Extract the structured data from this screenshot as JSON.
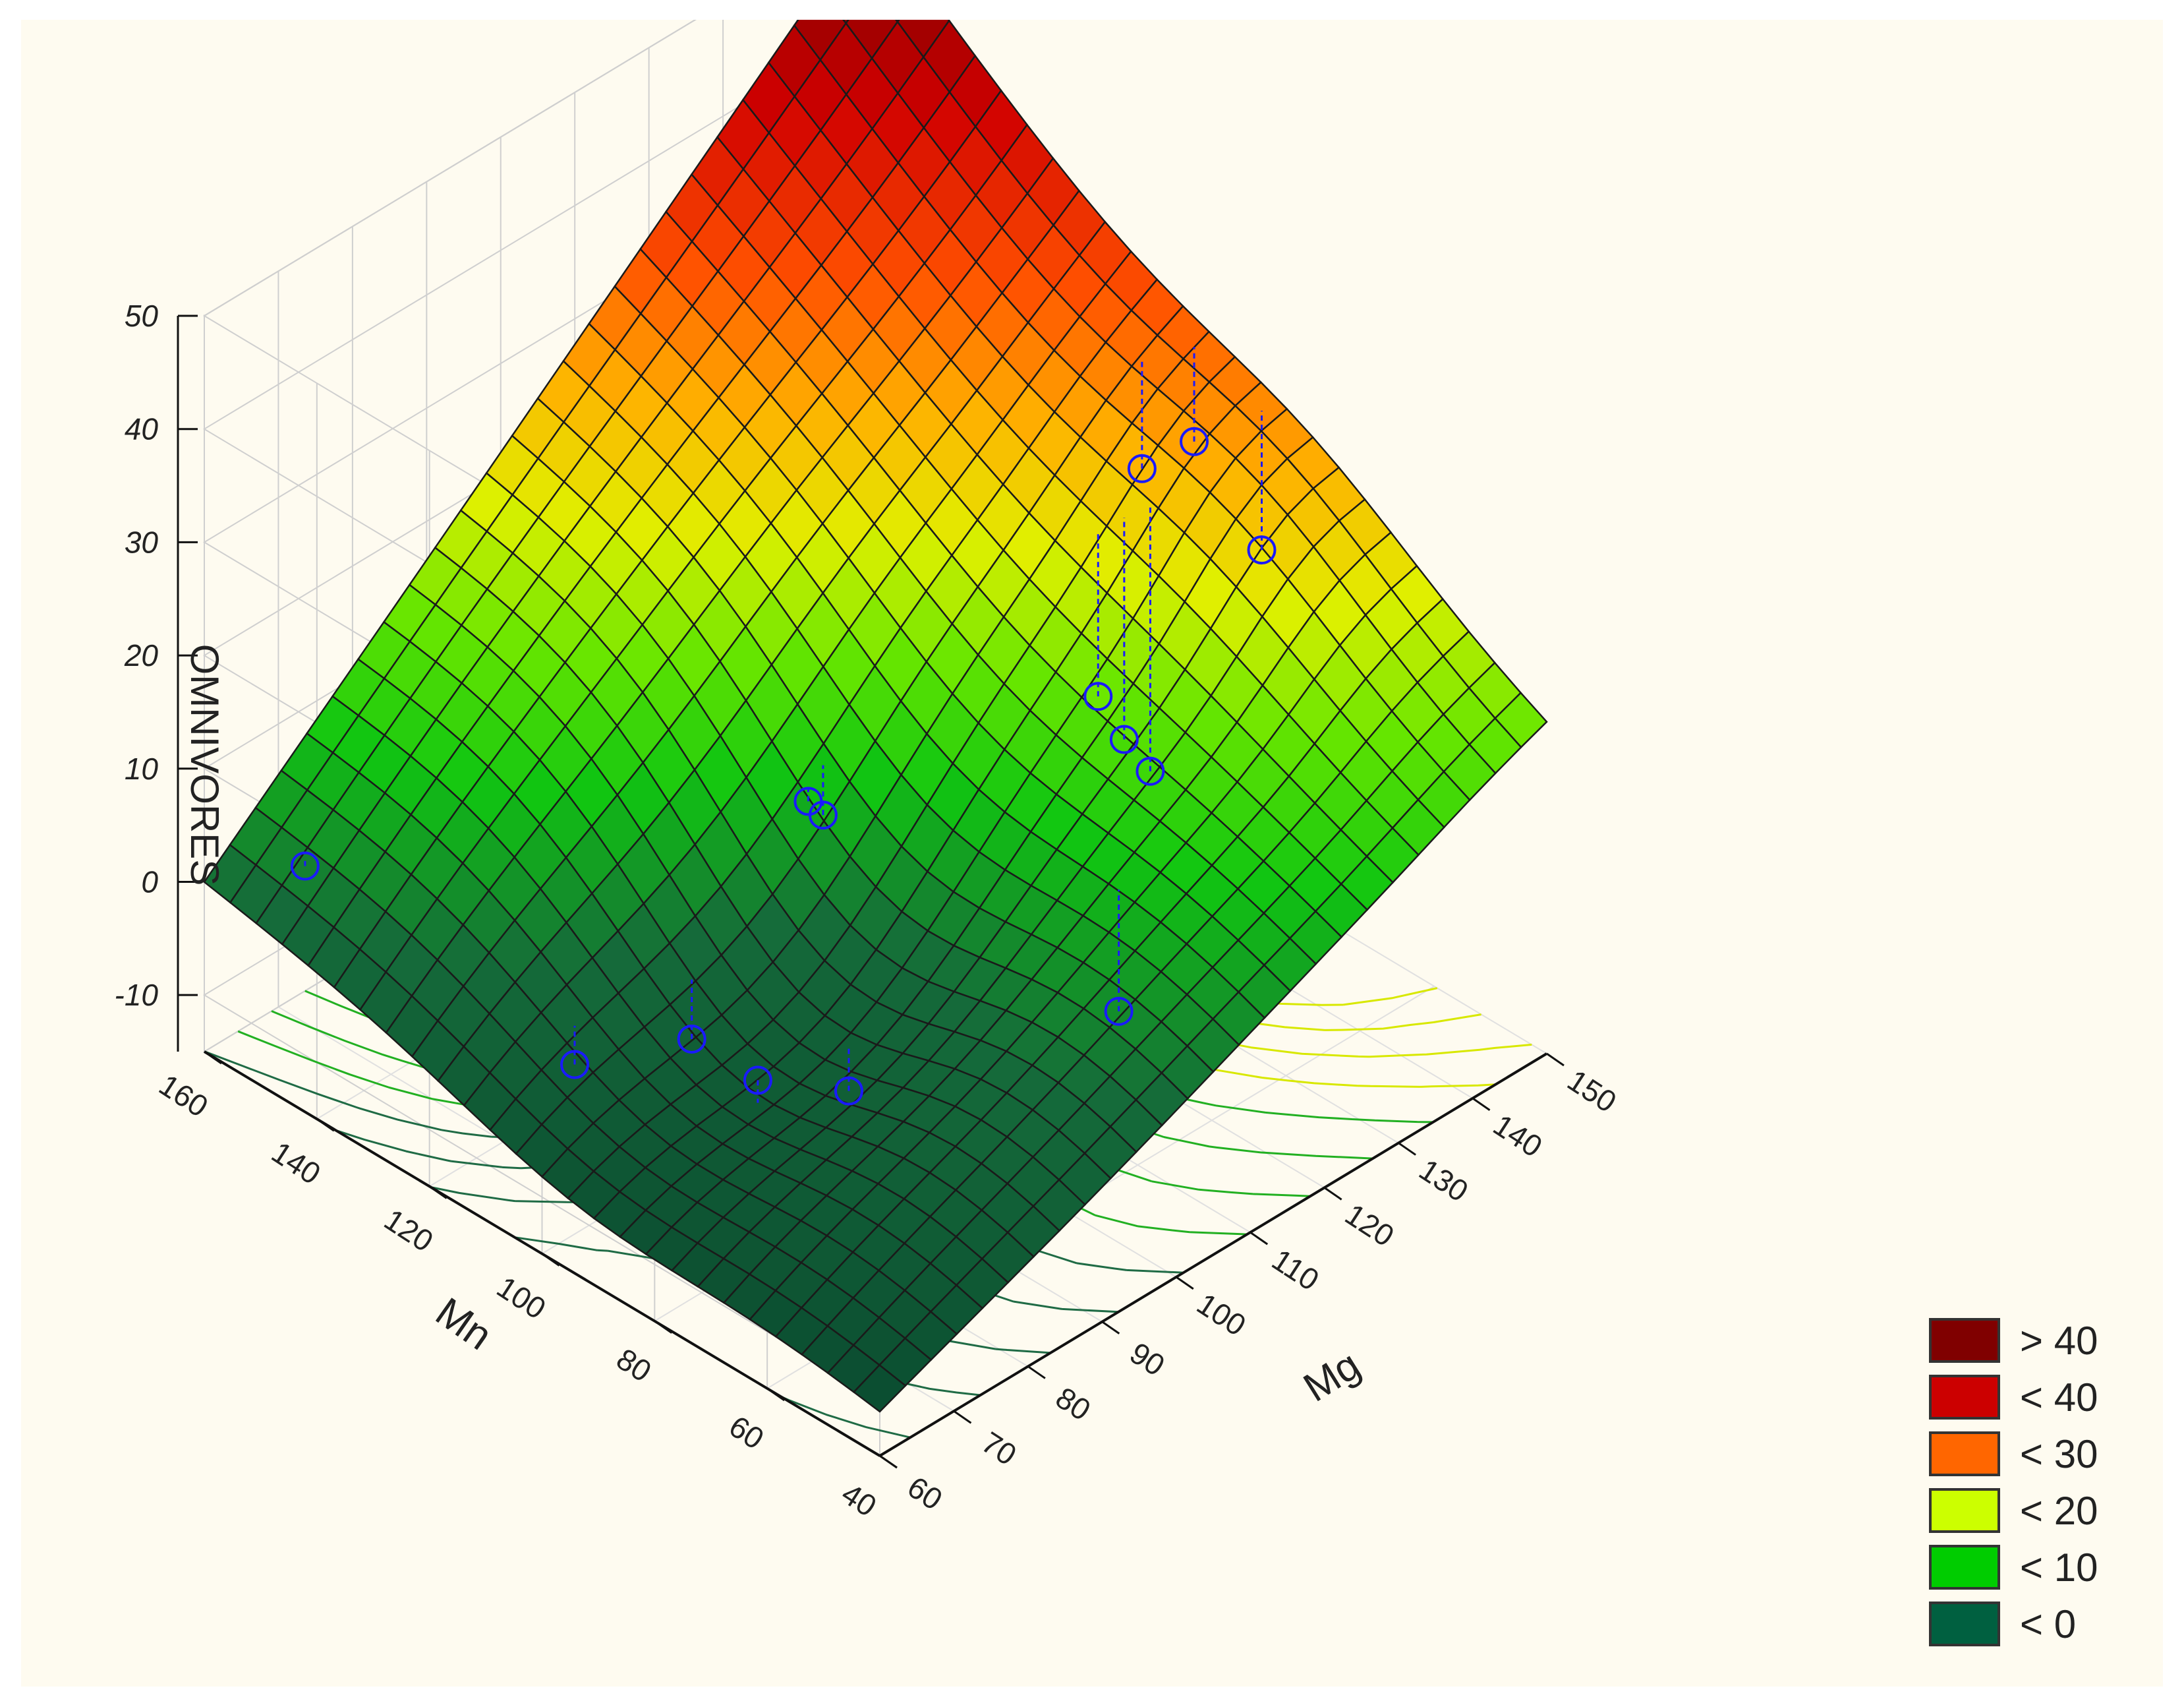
{
  "chart_data": {
    "type": "surface3d",
    "title": "",
    "zlabel": "OMNIVORES",
    "xlabel": "Mn",
    "ylabel": "Mg",
    "x_ticks": [
      "40",
      "60",
      "80",
      "100",
      "120",
      "140",
      "160"
    ],
    "y_ticks": [
      "60",
      "70",
      "80",
      "90",
      "100",
      "110",
      "120",
      "130",
      "140",
      "150"
    ],
    "z_ticks": [
      "-10",
      "0",
      "10",
      "20",
      "30",
      "40",
      "50"
    ],
    "xlim": [
      40,
      160
    ],
    "ylim": [
      60,
      150
    ],
    "zlim": [
      -15,
      50
    ],
    "corner_values": [
      {
        "Mn": 160,
        "Mg": 60,
        "OMNIVORES": 0
      },
      {
        "Mn": 160,
        "Mg": 150,
        "OMNIVORES": 50
      },
      {
        "Mn": 40,
        "Mg": 150,
        "OMNIVORES": 14
      },
      {
        "Mn": 40,
        "Mg": 60,
        "OMNIVORES": -11
      }
    ],
    "observations": [
      {
        "Mn": 150,
        "Mg": 66,
        "OMNIVORES": 2
      },
      {
        "Mn": 110,
        "Mg": 72,
        "OMNIVORES": -6
      },
      {
        "Mn": 88,
        "Mg": 80,
        "OMNIVORES": -4
      },
      {
        "Mn": 105,
        "Mg": 84,
        "OMNIVORES": -7
      },
      {
        "Mn": 85,
        "Mg": 90,
        "OMNIVORES": -8
      },
      {
        "Mn": 108,
        "Mg": 102,
        "OMNIVORES": 6
      },
      {
        "Mn": 108,
        "Mg": 104,
        "OMNIVORES": 4
      },
      {
        "Mn": 66,
        "Mg": 112,
        "OMNIVORES": -4
      },
      {
        "Mn": 96,
        "Mg": 132,
        "OMNIVORES": 7
      },
      {
        "Mn": 94,
        "Mg": 134,
        "OMNIVORES": 3
      },
      {
        "Mn": 92,
        "Mg": 136,
        "OMNIVORES": 0
      },
      {
        "Mn": 104,
        "Mg": 144,
        "OMNIVORES": 20
      },
      {
        "Mn": 100,
        "Mg": 148,
        "OMNIVORES": 22
      },
      {
        "Mn": 88,
        "Mg": 148,
        "OMNIVORES": 16
      }
    ],
    "grid": true,
    "legend": {
      "placement": "bottom-right",
      "entries": [
        {
          "label": "> 40",
          "color": "#800000"
        },
        {
          "label": "< 40",
          "color": "#cc0000"
        },
        {
          "label": "< 30",
          "color": "#ff6600"
        },
        {
          "label": "< 20",
          "color": "#ccff00"
        },
        {
          "label": "< 10",
          "color": "#00cc00"
        },
        {
          "label": "< 0",
          "color": "#006040"
        }
      ]
    }
  }
}
